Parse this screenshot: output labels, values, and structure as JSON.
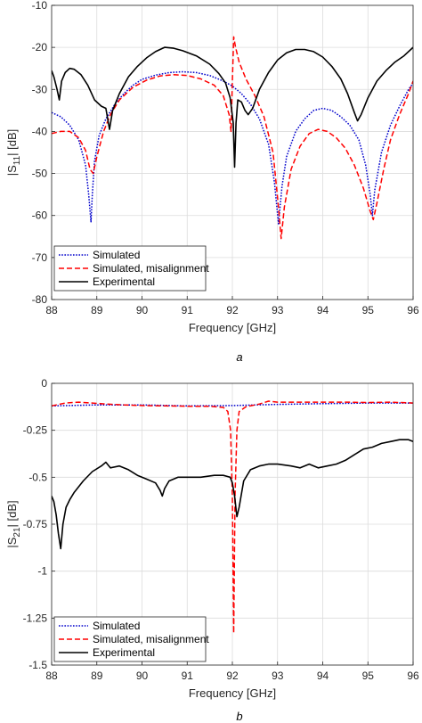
{
  "chart_data": [
    {
      "type": "line",
      "caption": "a",
      "xlabel": "Frequency [GHz]",
      "ylabel": {
        "base": "|S",
        "sub": "11",
        "rest": "| [dB]"
      },
      "xlim": [
        88,
        96
      ],
      "ylim": [
        -80,
        -10
      ],
      "xticks": [
        88,
        89,
        90,
        91,
        92,
        93,
        94,
        95,
        96
      ],
      "yticks": [
        -80,
        -70,
        -60,
        -50,
        -40,
        -30,
        -20,
        -10
      ],
      "grid": true,
      "legend_position": "bottom-left",
      "series": [
        {
          "name": "Simulated",
          "color": "#0000cc",
          "style": "dotted",
          "points": [
            [
              88,
              -35.5
            ],
            [
              88.2,
              -36.5
            ],
            [
              88.4,
              -38.5
            ],
            [
              88.6,
              -42
            ],
            [
              88.75,
              -48
            ],
            [
              88.82,
              -55
            ],
            [
              88.87,
              -61.5
            ],
            [
              88.9,
              -55
            ],
            [
              88.95,
              -47
            ],
            [
              89.05,
              -41
            ],
            [
              89.2,
              -37
            ],
            [
              89.4,
              -33.5
            ],
            [
              89.6,
              -31
            ],
            [
              89.8,
              -29
            ],
            [
              90,
              -27.6
            ],
            [
              90.3,
              -26.6
            ],
            [
              90.6,
              -26
            ],
            [
              90.9,
              -25.8
            ],
            [
              91.2,
              -26
            ],
            [
              91.5,
              -26.7
            ],
            [
              91.8,
              -28
            ],
            [
              92,
              -29.2
            ],
            [
              92.2,
              -31
            ],
            [
              92.4,
              -33.5
            ],
            [
              92.6,
              -37
            ],
            [
              92.8,
              -43
            ],
            [
              92.93,
              -52
            ],
            [
              93.02,
              -62
            ],
            [
              93.1,
              -53
            ],
            [
              93.2,
              -46
            ],
            [
              93.4,
              -40
            ],
            [
              93.6,
              -37
            ],
            [
              93.8,
              -35
            ],
            [
              94,
              -34.5
            ],
            [
              94.2,
              -35
            ],
            [
              94.4,
              -36.5
            ],
            [
              94.6,
              -38.5
            ],
            [
              94.8,
              -42
            ],
            [
              94.95,
              -48
            ],
            [
              95.05,
              -55
            ],
            [
              95.1,
              -60
            ],
            [
              95.15,
              -54
            ],
            [
              95.3,
              -45
            ],
            [
              95.5,
              -38.5
            ],
            [
              95.7,
              -34
            ],
            [
              95.9,
              -30
            ],
            [
              96,
              -28.5
            ]
          ]
        },
        {
          "name": "Simulated, misalignment",
          "color": "#ff0000",
          "style": "dashed",
          "points": [
            [
              88,
              -40.5
            ],
            [
              88.2,
              -40
            ],
            [
              88.4,
              -40
            ],
            [
              88.6,
              -41.5
            ],
            [
              88.75,
              -44.5
            ],
            [
              88.85,
              -49
            ],
            [
              88.92,
              -50
            ],
            [
              89,
              -46
            ],
            [
              89.15,
              -40
            ],
            [
              89.3,
              -36
            ],
            [
              89.5,
              -32.5
            ],
            [
              89.8,
              -29.5
            ],
            [
              90.1,
              -27.8
            ],
            [
              90.4,
              -26.8
            ],
            [
              90.7,
              -26.5
            ],
            [
              91,
              -26.7
            ],
            [
              91.3,
              -27.5
            ],
            [
              91.6,
              -29
            ],
            [
              91.8,
              -31.5
            ],
            [
              91.93,
              -36
            ],
            [
              91.97,
              -40
            ],
            [
              92,
              -28
            ],
            [
              92.03,
              -17.5
            ],
            [
              92.07,
              -20
            ],
            [
              92.15,
              -23.5
            ],
            [
              92.3,
              -27.5
            ],
            [
              92.5,
              -31.5
            ],
            [
              92.7,
              -36.5
            ],
            [
              92.9,
              -45
            ],
            [
              93.02,
              -58
            ],
            [
              93.08,
              -65.5
            ],
            [
              93.15,
              -58
            ],
            [
              93.3,
              -49
            ],
            [
              93.5,
              -43.5
            ],
            [
              93.7,
              -40.5
            ],
            [
              93.9,
              -39.5
            ],
            [
              94.1,
              -40
            ],
            [
              94.3,
              -41.5
            ],
            [
              94.5,
              -44
            ],
            [
              94.7,
              -48
            ],
            [
              94.9,
              -53.5
            ],
            [
              95.05,
              -59
            ],
            [
              95.12,
              -61
            ],
            [
              95.2,
              -57
            ],
            [
              95.35,
              -49
            ],
            [
              95.5,
              -42
            ],
            [
              95.7,
              -36
            ],
            [
              95.9,
              -31
            ],
            [
              96,
              -28
            ]
          ]
        },
        {
          "name": "Experimental",
          "color": "#000000",
          "style": "solid",
          "points": [
            [
              88,
              -25.5
            ],
            [
              88.05,
              -27
            ],
            [
              88.12,
              -30
            ],
            [
              88.17,
              -32.5
            ],
            [
              88.22,
              -28
            ],
            [
              88.3,
              -26
            ],
            [
              88.4,
              -25
            ],
            [
              88.5,
              -25.2
            ],
            [
              88.65,
              -26.5
            ],
            [
              88.8,
              -29
            ],
            [
              88.95,
              -32.5
            ],
            [
              89.1,
              -34
            ],
            [
              89.2,
              -34.5
            ],
            [
              89.28,
              -39.5
            ],
            [
              89.35,
              -35
            ],
            [
              89.5,
              -31
            ],
            [
              89.7,
              -27
            ],
            [
              89.9,
              -24.5
            ],
            [
              90.1,
              -22.5
            ],
            [
              90.3,
              -21
            ],
            [
              90.5,
              -20
            ],
            [
              90.7,
              -20.2
            ],
            [
              90.9,
              -20.8
            ],
            [
              91.2,
              -22
            ],
            [
              91.5,
              -24
            ],
            [
              91.7,
              -26.2
            ],
            [
              91.85,
              -28.5
            ],
            [
              91.95,
              -32
            ],
            [
              92.02,
              -38
            ],
            [
              92.05,
              -48.5
            ],
            [
              92.08,
              -38
            ],
            [
              92.12,
              -32.5
            ],
            [
              92.2,
              -33
            ],
            [
              92.28,
              -35
            ],
            [
              92.35,
              -36
            ],
            [
              92.45,
              -34.5
            ],
            [
              92.6,
              -30
            ],
            [
              92.8,
              -26
            ],
            [
              93,
              -23
            ],
            [
              93.2,
              -21.3
            ],
            [
              93.4,
              -20.5
            ],
            [
              93.6,
              -20.5
            ],
            [
              93.8,
              -21
            ],
            [
              94,
              -22.3
            ],
            [
              94.2,
              -24.5
            ],
            [
              94.4,
              -27.5
            ],
            [
              94.55,
              -31
            ],
            [
              94.7,
              -35.5
            ],
            [
              94.77,
              -37.5
            ],
            [
              94.85,
              -36
            ],
            [
              95,
              -32
            ],
            [
              95.2,
              -28
            ],
            [
              95.4,
              -25.5
            ],
            [
              95.6,
              -23.5
            ],
            [
              95.8,
              -22
            ],
            [
              96,
              -20
            ]
          ]
        }
      ]
    },
    {
      "type": "line",
      "caption": "b",
      "xlabel": "Frequency [GHz]",
      "ylabel": {
        "base": "|S",
        "sub": "21",
        "rest": "| [dB]"
      },
      "xlim": [
        88,
        96
      ],
      "ylim": [
        -1.5,
        0
      ],
      "xticks": [
        88,
        89,
        90,
        91,
        92,
        93,
        94,
        95,
        96
      ],
      "yticks": [
        -1.5,
        -1.25,
        -1,
        -0.75,
        -0.5,
        -0.25,
        0
      ],
      "ytick_labels": [
        "-1.5",
        "-1.25",
        "-1",
        "-0.75",
        "-0.5",
        "-0.25",
        "0"
      ],
      "grid": true,
      "legend_position": "bottom-left",
      "series": [
        {
          "name": "Simulated",
          "color": "#0000cc",
          "style": "dotted",
          "points": [
            [
              88,
              -0.12
            ],
            [
              89,
              -0.115
            ],
            [
              90,
              -0.115
            ],
            [
              91,
              -0.12
            ],
            [
              92,
              -0.118
            ],
            [
              93,
              -0.112
            ],
            [
              94,
              -0.108
            ],
            [
              95,
              -0.105
            ],
            [
              96,
              -0.105
            ]
          ]
        },
        {
          "name": "Simulated, misalignment",
          "color": "#ff0000",
          "style": "dashed",
          "points": [
            [
              88,
              -0.12
            ],
            [
              88.3,
              -0.105
            ],
            [
              88.6,
              -0.1
            ],
            [
              88.9,
              -0.105
            ],
            [
              89.2,
              -0.11
            ],
            [
              89.6,
              -0.115
            ],
            [
              90,
              -0.118
            ],
            [
              90.5,
              -0.12
            ],
            [
              91,
              -0.122
            ],
            [
              91.5,
              -0.122
            ],
            [
              91.8,
              -0.128
            ],
            [
              91.9,
              -0.15
            ],
            [
              91.96,
              -0.25
            ],
            [
              92.0,
              -0.6
            ],
            [
              92.03,
              -1.33
            ],
            [
              92.06,
              -0.6
            ],
            [
              92.1,
              -0.25
            ],
            [
              92.15,
              -0.15
            ],
            [
              92.3,
              -0.125
            ],
            [
              92.6,
              -0.11
            ],
            [
              92.8,
              -0.095
            ],
            [
              93,
              -0.1
            ],
            [
              93.5,
              -0.1
            ],
            [
              94,
              -0.1
            ],
            [
              94.5,
              -0.1
            ],
            [
              95,
              -0.102
            ],
            [
              95.5,
              -0.1
            ],
            [
              96,
              -0.105
            ]
          ]
        },
        {
          "name": "Experimental",
          "color": "#000000",
          "style": "solid",
          "points": [
            [
              88,
              -0.6
            ],
            [
              88.05,
              -0.63
            ],
            [
              88.1,
              -0.7
            ],
            [
              88.15,
              -0.8
            ],
            [
              88.2,
              -0.88
            ],
            [
              88.25,
              -0.75
            ],
            [
              88.32,
              -0.66
            ],
            [
              88.4,
              -0.62
            ],
            [
              88.5,
              -0.58
            ],
            [
              88.7,
              -0.52
            ],
            [
              88.9,
              -0.47
            ],
            [
              89.1,
              -0.44
            ],
            [
              89.2,
              -0.42
            ],
            [
              89.3,
              -0.45
            ],
            [
              89.5,
              -0.44
            ],
            [
              89.7,
              -0.46
            ],
            [
              89.9,
              -0.49
            ],
            [
              90.1,
              -0.51
            ],
            [
              90.3,
              -0.53
            ],
            [
              90.4,
              -0.57
            ],
            [
              90.45,
              -0.6
            ],
            [
              90.5,
              -0.56
            ],
            [
              90.6,
              -0.52
            ],
            [
              90.8,
              -0.5
            ],
            [
              91,
              -0.5
            ],
            [
              91.3,
              -0.5
            ],
            [
              91.6,
              -0.49
            ],
            [
              91.8,
              -0.49
            ],
            [
              91.95,
              -0.5
            ],
            [
              92,
              -0.53
            ],
            [
              92.05,
              -0.6
            ],
            [
              92.1,
              -0.71
            ],
            [
              92.15,
              -0.66
            ],
            [
              92.25,
              -0.52
            ],
            [
              92.4,
              -0.46
            ],
            [
              92.6,
              -0.44
            ],
            [
              92.8,
              -0.43
            ],
            [
              93,
              -0.43
            ],
            [
              93.3,
              -0.44
            ],
            [
              93.5,
              -0.45
            ],
            [
              93.7,
              -0.43
            ],
            [
              93.9,
              -0.45
            ],
            [
              94.1,
              -0.44
            ],
            [
              94.3,
              -0.43
            ],
            [
              94.5,
              -0.41
            ],
            [
              94.7,
              -0.38
            ],
            [
              94.9,
              -0.35
            ],
            [
              95.1,
              -0.34
            ],
            [
              95.3,
              -0.32
            ],
            [
              95.5,
              -0.31
            ],
            [
              95.7,
              -0.3
            ],
            [
              95.9,
              -0.3
            ],
            [
              96,
              -0.31
            ]
          ]
        }
      ]
    }
  ]
}
